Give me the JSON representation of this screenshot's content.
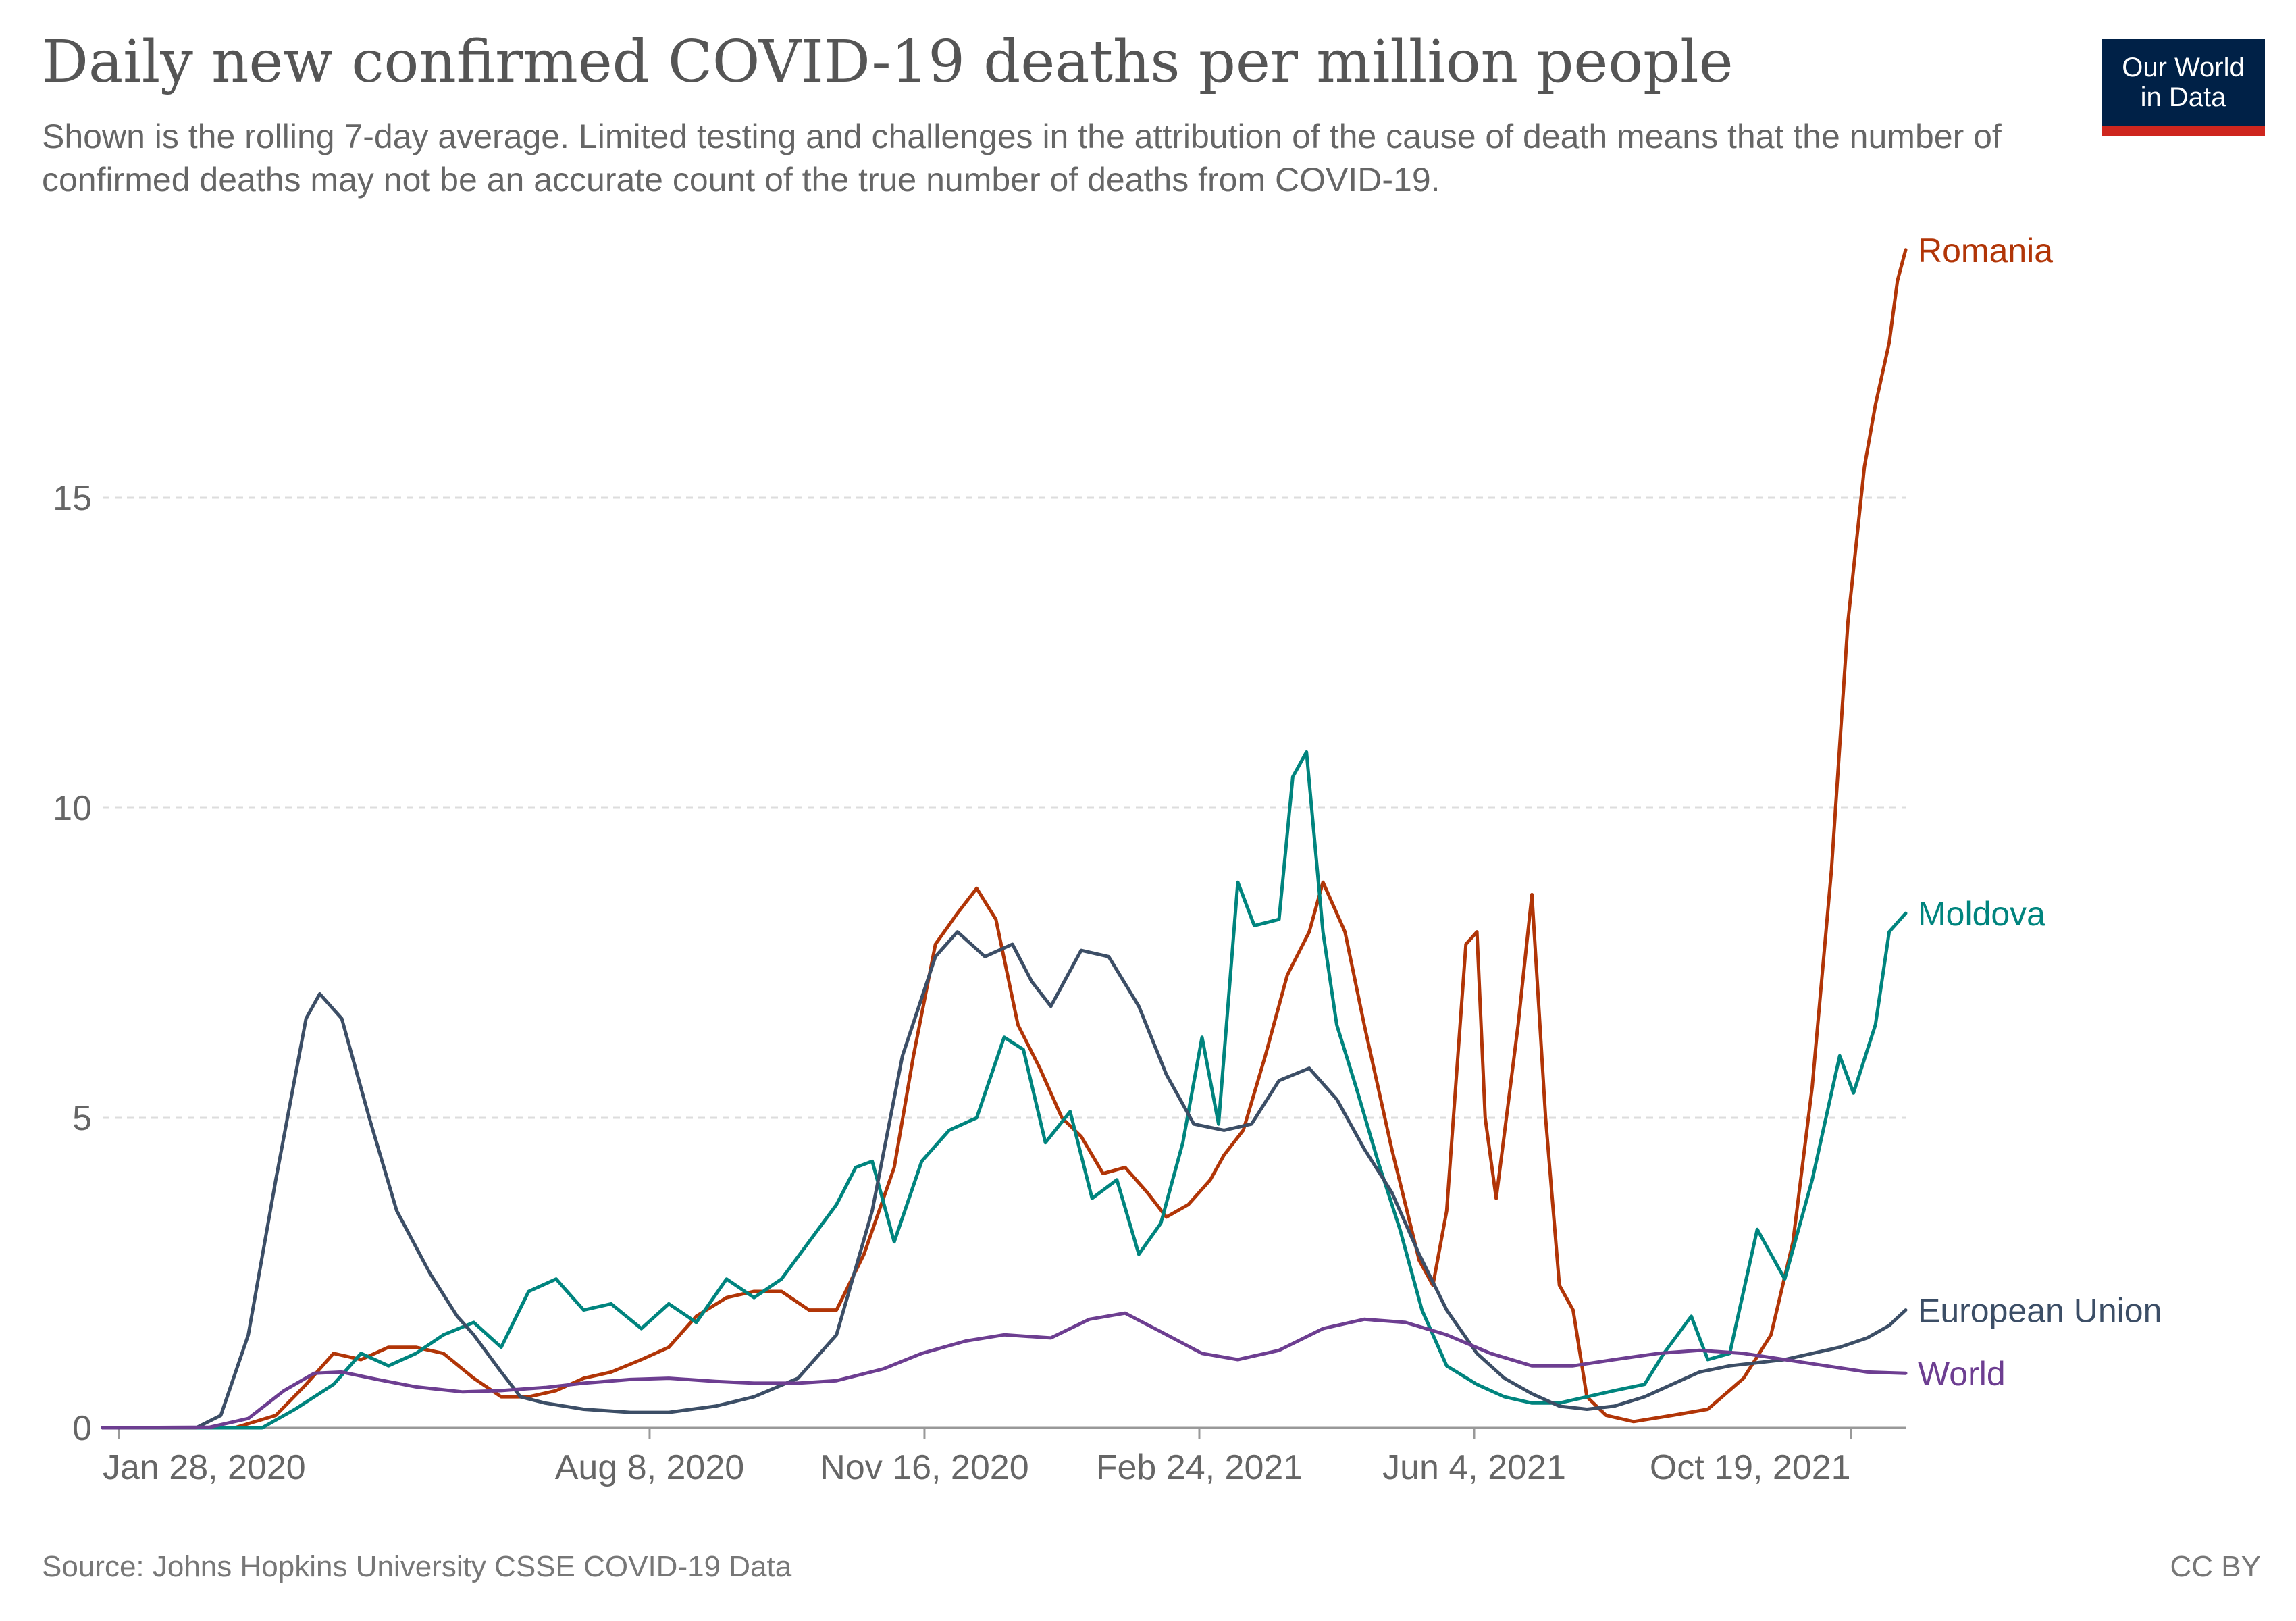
{
  "title": "Daily new confirmed COVID-19 deaths per million people",
  "subtitle": "Shown is the rolling 7-day average. Limited testing and challenges in the attribution of the cause of death means that the number of confirmed deaths may not be an accurate count of the true number of deaths from COVID-19.",
  "logo": {
    "line1": "Our World",
    "line2": "in Data",
    "bg_color": "#002147",
    "accent_color": "#ce261e"
  },
  "source": "Source: Johns Hopkins University CSSE COVID-19 Data",
  "license": "CC BY",
  "chart_data": {
    "type": "line",
    "title": "Daily new confirmed COVID-19 deaths per million people",
    "xlabel": "",
    "ylabel": "",
    "x_range": [
      "2020-01-22",
      "2021-11-08"
    ],
    "ylim": [
      0,
      19
    ],
    "y_ticks": [
      0,
      5,
      10,
      15
    ],
    "x_ticks": [
      {
        "date": "2020-01-28",
        "label": "Jan 28, 2020"
      },
      {
        "date": "2020-08-08",
        "label": "Aug 8, 2020"
      },
      {
        "date": "2020-11-16",
        "label": "Nov 16, 2020"
      },
      {
        "date": "2021-02-24",
        "label": "Feb 24, 2021"
      },
      {
        "date": "2021-06-04",
        "label": "Jun 4, 2021"
      },
      {
        "date": "2021-10-19",
        "label": "Oct 19, 2021"
      }
    ],
    "grid": "horizontal dashed",
    "legend": "labels at line ends (right)",
    "series": [
      {
        "name": "Romania",
        "color": "#b13507",
        "points": [
          [
            "2020-01-22",
            0
          ],
          [
            "2020-03-10",
            0
          ],
          [
            "2020-03-25",
            0.2
          ],
          [
            "2020-04-05",
            0.7
          ],
          [
            "2020-04-15",
            1.2
          ],
          [
            "2020-04-25",
            1.1
          ],
          [
            "2020-05-05",
            1.3
          ],
          [
            "2020-05-15",
            1.3
          ],
          [
            "2020-05-25",
            1.2
          ],
          [
            "2020-06-05",
            0.8
          ],
          [
            "2020-06-15",
            0.5
          ],
          [
            "2020-06-25",
            0.5
          ],
          [
            "2020-07-05",
            0.6
          ],
          [
            "2020-07-15",
            0.8
          ],
          [
            "2020-07-25",
            0.9
          ],
          [
            "2020-08-05",
            1.1
          ],
          [
            "2020-08-15",
            1.3
          ],
          [
            "2020-08-25",
            1.8
          ],
          [
            "2020-09-05",
            2.1
          ],
          [
            "2020-09-15",
            2.2
          ],
          [
            "2020-09-25",
            2.2
          ],
          [
            "2020-10-05",
            1.9
          ],
          [
            "2020-10-15",
            1.9
          ],
          [
            "2020-10-25",
            2.8
          ],
          [
            "2020-11-05",
            4.2
          ],
          [
            "2020-11-12",
            6.0
          ],
          [
            "2020-11-20",
            7.8
          ],
          [
            "2020-11-28",
            8.3
          ],
          [
            "2020-12-05",
            8.7
          ],
          [
            "2020-12-12",
            8.2
          ],
          [
            "2020-12-20",
            6.5
          ],
          [
            "2020-12-28",
            5.8
          ],
          [
            "2021-01-05",
            5.0
          ],
          [
            "2021-01-12",
            4.7
          ],
          [
            "2021-01-20",
            4.1
          ],
          [
            "2021-01-28",
            4.2
          ],
          [
            "2021-02-05",
            3.8
          ],
          [
            "2021-02-12",
            3.4
          ],
          [
            "2021-02-20",
            3.6
          ],
          [
            "2021-02-28",
            4.0
          ],
          [
            "2021-03-05",
            4.4
          ],
          [
            "2021-03-12",
            4.8
          ],
          [
            "2021-03-20",
            6.0
          ],
          [
            "2021-03-28",
            7.3
          ],
          [
            "2021-04-05",
            8.0
          ],
          [
            "2021-04-10",
            8.8
          ],
          [
            "2021-04-18",
            8.0
          ],
          [
            "2021-04-25",
            6.5
          ],
          [
            "2021-05-05",
            4.5
          ],
          [
            "2021-05-15",
            2.7
          ],
          [
            "2021-05-20",
            2.3
          ],
          [
            "2021-05-25",
            3.5
          ],
          [
            "2021-06-01",
            7.8
          ],
          [
            "2021-06-05",
            8.0
          ],
          [
            "2021-06-08",
            5.0
          ],
          [
            "2021-06-12",
            3.7
          ],
          [
            "2021-06-20",
            6.5
          ],
          [
            "2021-06-25",
            8.6
          ],
          [
            "2021-06-30",
            5.0
          ],
          [
            "2021-07-05",
            2.3
          ],
          [
            "2021-07-10",
            1.9
          ],
          [
            "2021-07-15",
            0.5
          ],
          [
            "2021-07-22",
            0.2
          ],
          [
            "2021-08-01",
            0.1
          ],
          [
            "2021-08-15",
            0.2
          ],
          [
            "2021-08-28",
            0.3
          ],
          [
            "2021-09-10",
            0.8
          ],
          [
            "2021-09-20",
            1.5
          ],
          [
            "2021-09-28",
            3.0
          ],
          [
            "2021-10-05",
            5.5
          ],
          [
            "2021-10-12",
            9.0
          ],
          [
            "2021-10-18",
            13.0
          ],
          [
            "2021-10-24",
            15.5
          ],
          [
            "2021-10-28",
            16.5
          ],
          [
            "2021-11-02",
            17.5
          ],
          [
            "2021-11-05",
            18.5
          ],
          [
            "2021-11-08",
            19.0
          ]
        ]
      },
      {
        "name": "Moldova",
        "color": "#00847e",
        "points": [
          [
            "2020-01-22",
            0
          ],
          [
            "2020-03-20",
            0
          ],
          [
            "2020-04-01",
            0.3
          ],
          [
            "2020-04-15",
            0.7
          ],
          [
            "2020-04-25",
            1.2
          ],
          [
            "2020-05-05",
            1.0
          ],
          [
            "2020-05-15",
            1.2
          ],
          [
            "2020-05-25",
            1.5
          ],
          [
            "2020-06-05",
            1.7
          ],
          [
            "2020-06-15",
            1.3
          ],
          [
            "2020-06-25",
            2.2
          ],
          [
            "2020-07-05",
            2.4
          ],
          [
            "2020-07-15",
            1.9
          ],
          [
            "2020-07-25",
            2.0
          ],
          [
            "2020-08-05",
            1.6
          ],
          [
            "2020-08-15",
            2.0
          ],
          [
            "2020-08-25",
            1.7
          ],
          [
            "2020-09-05",
            2.4
          ],
          [
            "2020-09-15",
            2.1
          ],
          [
            "2020-09-25",
            2.4
          ],
          [
            "2020-10-05",
            3.0
          ],
          [
            "2020-10-15",
            3.6
          ],
          [
            "2020-10-22",
            4.2
          ],
          [
            "2020-10-28",
            4.3
          ],
          [
            "2020-11-05",
            3.0
          ],
          [
            "2020-11-15",
            4.3
          ],
          [
            "2020-11-25",
            4.8
          ],
          [
            "2020-12-05",
            5.0
          ],
          [
            "2020-12-15",
            6.3
          ],
          [
            "2020-12-22",
            6.1
          ],
          [
            "2020-12-30",
            4.6
          ],
          [
            "2021-01-08",
            5.1
          ],
          [
            "2021-01-16",
            3.7
          ],
          [
            "2021-01-25",
            4.0
          ],
          [
            "2021-02-02",
            2.8
          ],
          [
            "2021-02-10",
            3.3
          ],
          [
            "2021-02-18",
            4.6
          ],
          [
            "2021-02-25",
            6.3
          ],
          [
            "2021-03-03",
            4.9
          ],
          [
            "2021-03-10",
            8.8
          ],
          [
            "2021-03-16",
            8.1
          ],
          [
            "2021-03-25",
            8.2
          ],
          [
            "2021-03-30",
            10.5
          ],
          [
            "2021-04-04",
            10.9
          ],
          [
            "2021-04-10",
            8.0
          ],
          [
            "2021-04-15",
            6.5
          ],
          [
            "2021-04-22",
            5.5
          ],
          [
            "2021-04-30",
            4.3
          ],
          [
            "2021-05-08",
            3.2
          ],
          [
            "2021-05-16",
            1.9
          ],
          [
            "2021-05-25",
            1.0
          ],
          [
            "2021-06-05",
            0.7
          ],
          [
            "2021-06-15",
            0.5
          ],
          [
            "2021-06-25",
            0.4
          ],
          [
            "2021-07-05",
            0.4
          ],
          [
            "2021-07-15",
            0.5
          ],
          [
            "2021-07-25",
            0.6
          ],
          [
            "2021-08-05",
            0.7
          ],
          [
            "2021-08-12",
            1.2
          ],
          [
            "2021-08-22",
            1.8
          ],
          [
            "2021-08-28",
            1.1
          ],
          [
            "2021-09-05",
            1.2
          ],
          [
            "2021-09-15",
            3.2
          ],
          [
            "2021-09-25",
            2.4
          ],
          [
            "2021-10-05",
            4.0
          ],
          [
            "2021-10-15",
            6.0
          ],
          [
            "2021-10-20",
            5.4
          ],
          [
            "2021-10-28",
            6.5
          ],
          [
            "2021-11-02",
            8.0
          ],
          [
            "2021-11-08",
            8.3
          ]
        ]
      },
      {
        "name": "European Union",
        "color": "#3c4e66",
        "points": [
          [
            "2020-01-22",
            0
          ],
          [
            "2020-02-25",
            0
          ],
          [
            "2020-03-05",
            0.2
          ],
          [
            "2020-03-15",
            1.5
          ],
          [
            "2020-03-25",
            4.0
          ],
          [
            "2020-04-05",
            6.6
          ],
          [
            "2020-04-10",
            7.0
          ],
          [
            "2020-04-18",
            6.6
          ],
          [
            "2020-04-28",
            5.0
          ],
          [
            "2020-05-08",
            3.5
          ],
          [
            "2020-05-20",
            2.5
          ],
          [
            "2020-05-30",
            1.8
          ],
          [
            "2020-06-05",
            1.5
          ],
          [
            "2020-06-15",
            0.9
          ],
          [
            "2020-06-22",
            0.5
          ],
          [
            "2020-07-01",
            0.4
          ],
          [
            "2020-07-15",
            0.3
          ],
          [
            "2020-08-01",
            0.25
          ],
          [
            "2020-08-15",
            0.25
          ],
          [
            "2020-09-01",
            0.35
          ],
          [
            "2020-09-15",
            0.5
          ],
          [
            "2020-10-01",
            0.8
          ],
          [
            "2020-10-15",
            1.5
          ],
          [
            "2020-10-28",
            3.5
          ],
          [
            "2020-11-08",
            6.0
          ],
          [
            "2020-11-20",
            7.6
          ],
          [
            "2020-11-28",
            8.0
          ],
          [
            "2020-12-08",
            7.6
          ],
          [
            "2020-12-18",
            7.8
          ],
          [
            "2020-12-25",
            7.2
          ],
          [
            "2021-01-01",
            6.8
          ],
          [
            "2021-01-12",
            7.7
          ],
          [
            "2021-01-22",
            7.6
          ],
          [
            "2021-02-02",
            6.8
          ],
          [
            "2021-02-12",
            5.7
          ],
          [
            "2021-02-22",
            4.9
          ],
          [
            "2021-03-05",
            4.8
          ],
          [
            "2021-03-15",
            4.9
          ],
          [
            "2021-03-25",
            5.6
          ],
          [
            "2021-04-05",
            5.8
          ],
          [
            "2021-04-15",
            5.3
          ],
          [
            "2021-04-25",
            4.5
          ],
          [
            "2021-05-05",
            3.8
          ],
          [
            "2021-05-15",
            2.8
          ],
          [
            "2021-05-25",
            1.9
          ],
          [
            "2021-06-05",
            1.2
          ],
          [
            "2021-06-15",
            0.8
          ],
          [
            "2021-06-25",
            0.55
          ],
          [
            "2021-07-05",
            0.35
          ],
          [
            "2021-07-15",
            0.3
          ],
          [
            "2021-07-25",
            0.35
          ],
          [
            "2021-08-05",
            0.5
          ],
          [
            "2021-08-15",
            0.7
          ],
          [
            "2021-08-25",
            0.9
          ],
          [
            "2021-09-05",
            1.0
          ],
          [
            "2021-09-15",
            1.05
          ],
          [
            "2021-09-25",
            1.1
          ],
          [
            "2021-10-05",
            1.2
          ],
          [
            "2021-10-15",
            1.3
          ],
          [
            "2021-10-25",
            1.45
          ],
          [
            "2021-11-02",
            1.65
          ],
          [
            "2021-11-08",
            1.9
          ]
        ]
      },
      {
        "name": "World",
        "color": "#6d3e91",
        "points": [
          [
            "2020-01-22",
            0
          ],
          [
            "2020-03-01",
            0.01
          ],
          [
            "2020-03-15",
            0.15
          ],
          [
            "2020-03-28",
            0.6
          ],
          [
            "2020-04-08",
            0.88
          ],
          [
            "2020-04-18",
            0.9
          ],
          [
            "2020-05-01",
            0.78
          ],
          [
            "2020-05-15",
            0.66
          ],
          [
            "2020-06-01",
            0.58
          ],
          [
            "2020-06-15",
            0.6
          ],
          [
            "2020-07-01",
            0.65
          ],
          [
            "2020-07-15",
            0.72
          ],
          [
            "2020-08-01",
            0.78
          ],
          [
            "2020-08-15",
            0.8
          ],
          [
            "2020-09-01",
            0.75
          ],
          [
            "2020-09-15",
            0.72
          ],
          [
            "2020-10-01",
            0.72
          ],
          [
            "2020-10-15",
            0.76
          ],
          [
            "2020-11-01",
            0.95
          ],
          [
            "2020-11-15",
            1.2
          ],
          [
            "2020-12-01",
            1.4
          ],
          [
            "2020-12-15",
            1.5
          ],
          [
            "2021-01-01",
            1.45
          ],
          [
            "2021-01-15",
            1.75
          ],
          [
            "2021-01-28",
            1.85
          ],
          [
            "2021-02-10",
            1.55
          ],
          [
            "2021-02-25",
            1.2
          ],
          [
            "2021-03-10",
            1.1
          ],
          [
            "2021-03-25",
            1.25
          ],
          [
            "2021-04-10",
            1.6
          ],
          [
            "2021-04-25",
            1.75
          ],
          [
            "2021-05-10",
            1.7
          ],
          [
            "2021-05-25",
            1.5
          ],
          [
            "2021-06-10",
            1.2
          ],
          [
            "2021-06-25",
            1.0
          ],
          [
            "2021-07-10",
            1.0
          ],
          [
            "2021-07-25",
            1.1
          ],
          [
            "2021-08-10",
            1.2
          ],
          [
            "2021-08-25",
            1.25
          ],
          [
            "2021-09-10",
            1.2
          ],
          [
            "2021-09-25",
            1.1
          ],
          [
            "2021-10-10",
            1.0
          ],
          [
            "2021-10-25",
            0.9
          ],
          [
            "2021-11-08",
            0.88
          ]
        ]
      }
    ]
  }
}
